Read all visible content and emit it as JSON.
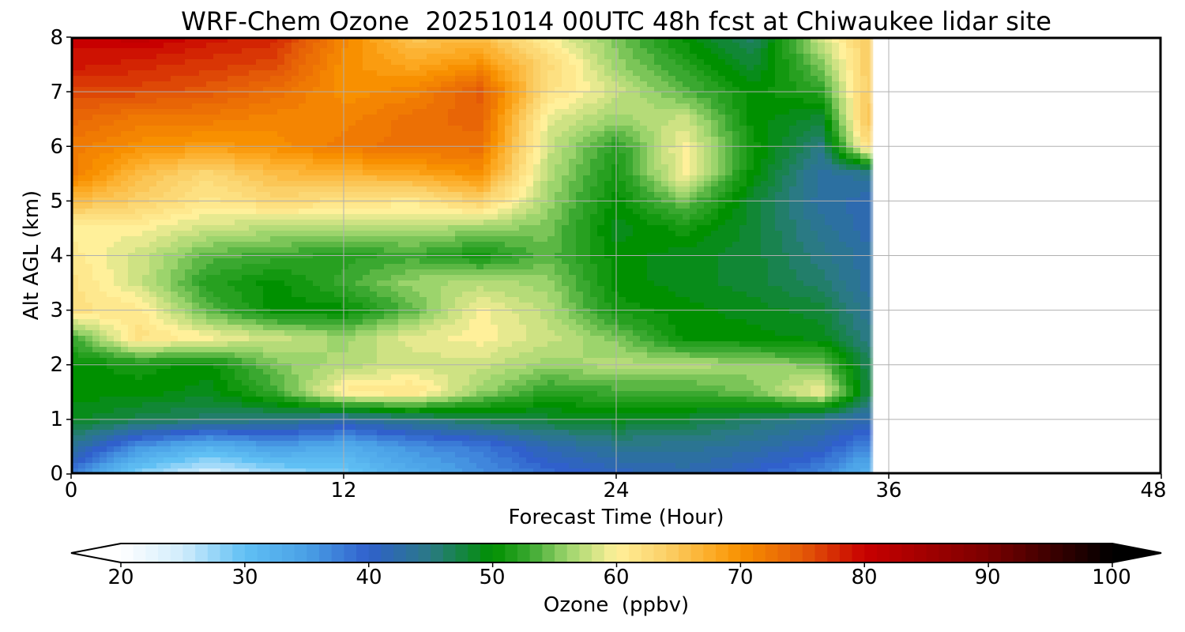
{
  "chart_data": {
    "type": "heatmap",
    "title": "WRF-Chem Ozone  20251014 00UTC 48h fcst at Chiwaukee lidar site",
    "xlabel": "Forecast Time (Hour)",
    "ylabel": "Alt AGL (km)",
    "xlim": [
      0,
      48
    ],
    "ylim": [
      0,
      8
    ],
    "x_ticks": [
      "0",
      "12",
      "24",
      "36",
      "48"
    ],
    "y_ticks": [
      "0",
      "1",
      "2",
      "3",
      "4",
      "5",
      "6",
      "7",
      "8"
    ],
    "grid": true,
    "data_end_hour": 35.3,
    "x": [
      0,
      3,
      6,
      9,
      12,
      15,
      18,
      21,
      24,
      27,
      30,
      33,
      35
    ],
    "y": [
      0,
      0.5,
      1,
      1.5,
      2,
      2.5,
      3,
      3.5,
      4,
      4.5,
      5,
      5.5,
      6,
      6.5,
      7,
      7.5,
      8
    ],
    "z": [
      [
        38,
        28,
        24,
        27,
        29,
        33,
        36,
        39,
        41,
        42,
        40,
        37,
        32
      ],
      [
        44,
        36,
        32,
        35,
        33,
        36,
        38,
        42,
        44,
        44,
        43,
        41,
        37
      ],
      [
        49,
        47,
        46,
        45,
        43,
        45,
        47,
        48,
        49,
        48,
        46,
        44,
        42
      ],
      [
        50,
        50,
        49,
        53,
        61,
        62,
        56,
        52,
        53,
        53,
        55,
        60,
        48
      ],
      [
        50,
        51,
        50,
        55,
        57,
        58,
        58,
        56,
        57,
        57,
        56,
        55,
        47
      ],
      [
        53,
        62,
        60,
        58,
        56,
        59,
        60,
        58,
        55,
        50,
        50,
        49,
        45
      ],
      [
        62,
        61,
        54,
        50,
        50,
        54,
        60,
        57,
        51,
        50,
        49,
        48,
        44
      ],
      [
        62,
        58,
        52,
        50,
        53,
        56,
        57,
        56,
        50,
        49,
        48,
        46,
        43
      ],
      [
        61,
        58,
        54,
        53,
        52,
        53,
        51,
        54,
        50,
        49,
        48,
        45,
        43
      ],
      [
        60,
        60,
        58,
        57,
        57,
        57,
        56,
        55,
        49,
        51,
        48,
        44,
        42
      ],
      [
        66,
        64,
        61,
        63,
        62,
        61,
        64,
        56,
        50,
        55,
        48,
        43,
        42
      ],
      [
        72,
        66,
        63,
        66,
        67,
        68,
        70,
        57,
        51,
        60,
        50,
        43,
        44
      ],
      [
        72,
        70,
        69,
        70,
        72,
        73,
        73,
        58,
        52,
        60,
        51,
        45,
        62
      ],
      [
        74,
        72,
        72,
        71,
        71,
        73,
        74,
        59,
        56,
        58,
        50,
        48,
        65
      ],
      [
        76,
        76,
        75,
        73,
        70,
        71,
        75,
        62,
        58,
        54,
        50,
        52,
        64
      ],
      [
        79,
        78,
        77,
        76,
        70,
        68,
        70,
        63,
        56,
        52,
        48,
        55,
        64
      ],
      [
        80,
        81,
        79,
        78,
        71,
        65,
        66,
        60,
        55,
        50,
        46,
        58,
        64
      ]
    ],
    "colorbar": {
      "label": "Ozone  (ppbv)",
      "min": 20,
      "max": 100,
      "ticks": [
        "20",
        "30",
        "40",
        "50",
        "60",
        "70",
        "80",
        "90",
        "100"
      ],
      "extend": "both"
    },
    "colors": {
      "s20": "#ffffff",
      "s25": "#d0ecfc",
      "s30": "#60c0f4",
      "s35": "#4aa0e6",
      "s40": "#3060cc",
      "s45": "#2a7a84",
      "s50": "#009000",
      "s53": "#3aa830",
      "s56": "#9cd46c",
      "s60": "#fff09a",
      "s64": "#fbd068",
      "s68": "#fca820",
      "s70": "#f89000",
      "s75": "#e45a08",
      "s80": "#c80000",
      "s90": "#7a0000",
      "s100": "#000000"
    }
  }
}
